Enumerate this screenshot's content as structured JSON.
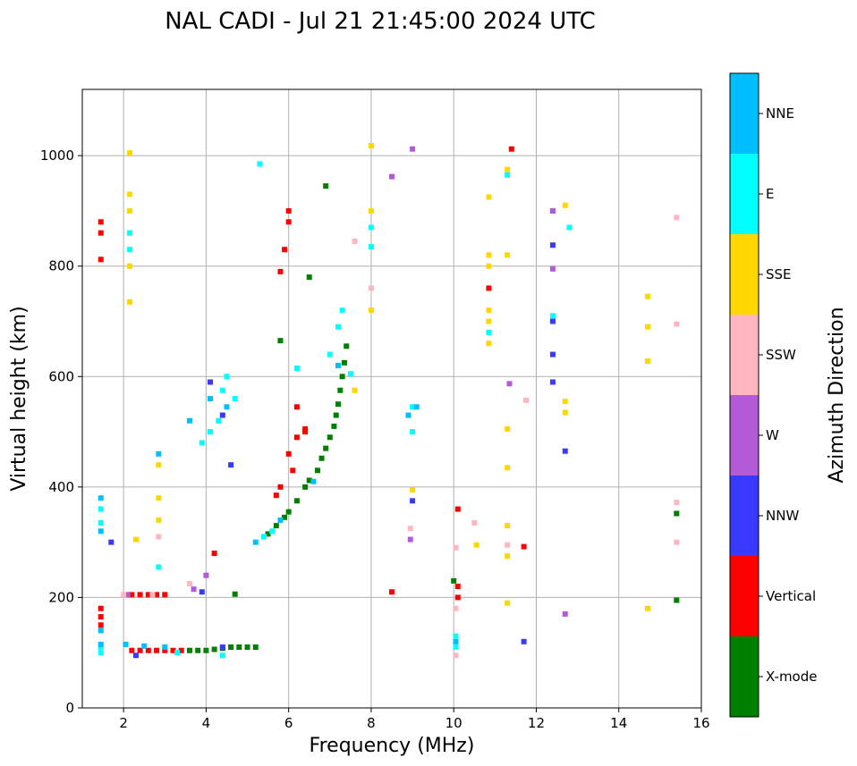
{
  "chart_data": {
    "type": "scatter",
    "title": "NAL CADI - Jul 21 21:45:00 2024 UTC",
    "xlabel": "Frequency (MHz)",
    "ylabel": "Virtual height (km)",
    "xlim": [
      1,
      16
    ],
    "ylim": [
      0,
      1120
    ],
    "xticks": [
      2,
      4,
      6,
      8,
      10,
      12,
      14,
      16
    ],
    "yticks": [
      0,
      200,
      400,
      600,
      800,
      1000
    ],
    "grid": true,
    "colorbar": {
      "label": "Azimuth Direction",
      "position": "right",
      "categories": [
        {
          "name": "X-mode",
          "color": "#008000"
        },
        {
          "name": "Vertical",
          "color": "#ff0000"
        },
        {
          "name": "NNW",
          "color": "#3a3aff"
        },
        {
          "name": "W",
          "color": "#b45ad6"
        },
        {
          "name": "SSW",
          "color": "#ffb6c1"
        },
        {
          "name": "SSE",
          "color": "#ffd700"
        },
        {
          "name": "E",
          "color": "#00ffff"
        },
        {
          "name": "NNE",
          "color": "#00bfff"
        }
      ]
    },
    "series": [
      {
        "name": "X-mode",
        "points": [
          [
            4.6,
            110
          ],
          [
            4.8,
            110
          ],
          [
            5.0,
            110
          ],
          [
            5.2,
            110
          ],
          [
            4.4,
            108
          ],
          [
            4.2,
            106
          ],
          [
            4.0,
            104
          ],
          [
            3.8,
            104
          ],
          [
            3.6,
            104
          ],
          [
            5.5,
            315
          ],
          [
            5.7,
            330
          ],
          [
            5.9,
            345
          ],
          [
            6.0,
            355
          ],
          [
            6.2,
            375
          ],
          [
            6.4,
            400
          ],
          [
            6.5,
            412
          ],
          [
            6.7,
            430
          ],
          [
            6.8,
            452
          ],
          [
            6.9,
            470
          ],
          [
            7.0,
            490
          ],
          [
            7.1,
            510
          ],
          [
            7.15,
            530
          ],
          [
            7.2,
            550
          ],
          [
            7.25,
            575
          ],
          [
            7.3,
            600
          ],
          [
            7.35,
            625
          ],
          [
            7.4,
            655
          ],
          [
            5.8,
            665
          ],
          [
            6.5,
            780
          ],
          [
            6.9,
            945
          ],
          [
            10.0,
            230
          ],
          [
            15.4,
            195
          ],
          [
            15.4,
            352
          ],
          [
            4.7,
            206
          ]
        ]
      },
      {
        "name": "Vertical",
        "points": [
          [
            1.45,
            180
          ],
          [
            1.45,
            165
          ],
          [
            1.45,
            150
          ],
          [
            1.45,
            880
          ],
          [
            1.45,
            860
          ],
          [
            1.45,
            812
          ],
          [
            2.2,
            205
          ],
          [
            2.4,
            205
          ],
          [
            2.6,
            205
          ],
          [
            2.8,
            205
          ],
          [
            3.0,
            205
          ],
          [
            2.2,
            104
          ],
          [
            2.4,
            104
          ],
          [
            2.6,
            104
          ],
          [
            2.8,
            104
          ],
          [
            3.0,
            104
          ],
          [
            3.2,
            104
          ],
          [
            3.4,
            104
          ],
          [
            4.2,
            280
          ],
          [
            5.7,
            385
          ],
          [
            5.8,
            400
          ],
          [
            6.1,
            430
          ],
          [
            6.0,
            460
          ],
          [
            6.2,
            490
          ],
          [
            6.4,
            505
          ],
          [
            6.2,
            545
          ],
          [
            6.4,
            500
          ],
          [
            5.8,
            790
          ],
          [
            6.0,
            880
          ],
          [
            6.0,
            900
          ],
          [
            5.9,
            830
          ],
          [
            10.1,
            360
          ],
          [
            10.1,
            200
          ],
          [
            10.1,
            220
          ],
          [
            10.85,
            760
          ],
          [
            11.4,
            1012
          ],
          [
            11.7,
            292
          ],
          [
            8.5,
            210
          ]
        ]
      },
      {
        "name": "NNW",
        "points": [
          [
            2.3,
            95
          ],
          [
            4.4,
            110
          ],
          [
            3.9,
            210
          ],
          [
            4.6,
            440
          ],
          [
            4.4,
            530
          ],
          [
            4.1,
            590
          ],
          [
            12.4,
            900
          ],
          [
            12.4,
            838
          ],
          [
            12.4,
            640
          ],
          [
            12.4,
            590
          ],
          [
            12.4,
            700
          ],
          [
            12.7,
            465
          ],
          [
            12.4,
            700
          ],
          [
            11.7,
            120
          ],
          [
            9.0,
            375
          ],
          [
            1.7,
            300
          ]
        ]
      },
      {
        "name": "W",
        "points": [
          [
            3.7,
            215
          ],
          [
            8.5,
            962
          ],
          [
            9.0,
            1012
          ],
          [
            12.4,
            900
          ],
          [
            12.7,
            170
          ],
          [
            8.95,
            305
          ],
          [
            4.0,
            240
          ],
          [
            12.4,
            795
          ],
          [
            11.35,
            587
          ],
          [
            2.1,
            205
          ]
        ]
      },
      {
        "name": "SSW",
        "points": [
          [
            2.0,
            205
          ],
          [
            2.7,
            205
          ],
          [
            2.85,
            310
          ],
          [
            3.6,
            225
          ],
          [
            8.95,
            325
          ],
          [
            10.05,
            180
          ],
          [
            10.05,
            95
          ],
          [
            10.05,
            290
          ],
          [
            11.3,
            295
          ],
          [
            15.4,
            888
          ],
          [
            15.4,
            695
          ],
          [
            15.4,
            372
          ],
          [
            15.4,
            300
          ],
          [
            10.5,
            335
          ],
          [
            7.6,
            845
          ],
          [
            8.0,
            760
          ],
          [
            11.75,
            557
          ]
        ]
      },
      {
        "name": "SSE",
        "points": [
          [
            2.15,
            1005
          ],
          [
            2.15,
            930
          ],
          [
            2.15,
            900
          ],
          [
            2.15,
            860
          ],
          [
            2.15,
            800
          ],
          [
            2.15,
            735
          ],
          [
            2.3,
            305
          ],
          [
            2.85,
            440
          ],
          [
            2.85,
            380
          ],
          [
            2.85,
            340
          ],
          [
            7.6,
            575
          ],
          [
            8.0,
            900
          ],
          [
            8.0,
            1018
          ],
          [
            8.0,
            720
          ],
          [
            10.85,
            925
          ],
          [
            10.85,
            820
          ],
          [
            10.85,
            800
          ],
          [
            10.85,
            720
          ],
          [
            10.85,
            700
          ],
          [
            10.85,
            660
          ],
          [
            11.3,
            275
          ],
          [
            11.3,
            190
          ],
          [
            11.3,
            330
          ],
          [
            11.3,
            505
          ],
          [
            11.3,
            435
          ],
          [
            11.3,
            820
          ],
          [
            11.3,
            975
          ],
          [
            12.7,
            910
          ],
          [
            12.7,
            555
          ],
          [
            12.7,
            535
          ],
          [
            14.7,
            690
          ],
          [
            14.7,
            628
          ],
          [
            14.7,
            745
          ],
          [
            14.7,
            180
          ],
          [
            9.0,
            395
          ],
          [
            10.55,
            295
          ]
        ]
      },
      {
        "name": "E",
        "points": [
          [
            1.45,
            360
          ],
          [
            1.45,
            335
          ],
          [
            1.45,
            110
          ],
          [
            1.45,
            100
          ],
          [
            2.15,
            860
          ],
          [
            2.15,
            830
          ],
          [
            2.85,
            255
          ],
          [
            3.3,
            100
          ],
          [
            3.9,
            480
          ],
          [
            4.1,
            500
          ],
          [
            4.3,
            520
          ],
          [
            4.5,
            600
          ],
          [
            4.4,
            575
          ],
          [
            4.7,
            560
          ],
          [
            5.4,
            310
          ],
          [
            5.6,
            320
          ],
          [
            5.3,
            985
          ],
          [
            6.2,
            615
          ],
          [
            7.0,
            640
          ],
          [
            7.2,
            690
          ],
          [
            7.3,
            720
          ],
          [
            7.5,
            605
          ],
          [
            8.0,
            835
          ],
          [
            8.0,
            870
          ],
          [
            9.0,
            545
          ],
          [
            9.0,
            500
          ],
          [
            10.05,
            130
          ],
          [
            10.05,
            110
          ],
          [
            10.85,
            680
          ],
          [
            11.3,
            965
          ],
          [
            12.8,
            870
          ],
          [
            12.4,
            710
          ],
          [
            4.4,
            95
          ]
        ]
      },
      {
        "name": "NNE",
        "points": [
          [
            1.45,
            380
          ],
          [
            1.45,
            320
          ],
          [
            1.45,
            140
          ],
          [
            1.45,
            115
          ],
          [
            2.05,
            115
          ],
          [
            2.5,
            112
          ],
          [
            2.85,
            460
          ],
          [
            3.0,
            110
          ],
          [
            3.6,
            520
          ],
          [
            4.1,
            560
          ],
          [
            4.5,
            545
          ],
          [
            5.2,
            300
          ],
          [
            5.8,
            340
          ],
          [
            6.6,
            410
          ],
          [
            7.2,
            620
          ],
          [
            8.9,
            530
          ],
          [
            9.1,
            545
          ],
          [
            10.05,
            120
          ]
        ]
      }
    ]
  }
}
